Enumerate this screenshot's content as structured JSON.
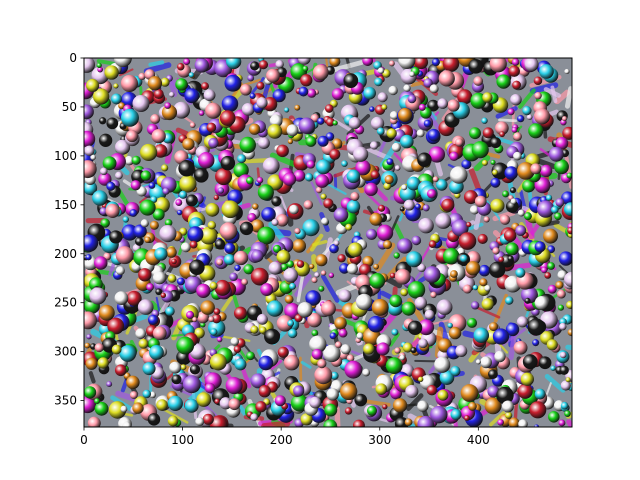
{
  "chart_data": {
    "type": "heatmap",
    "title": "",
    "xlabel": "",
    "ylabel": "",
    "xlim": [
      0,
      495
    ],
    "ylim": [
      377,
      0
    ],
    "x_ticks": [
      0,
      100,
      200,
      300,
      400
    ],
    "y_ticks": [
      0,
      50,
      100,
      150,
      200,
      250,
      300,
      350
    ],
    "x_tick_labels": [
      "0",
      "100",
      "200",
      "300",
      "400"
    ],
    "y_tick_labels": [
      "0",
      "50",
      "100",
      "150",
      "200",
      "250",
      "300",
      "350"
    ],
    "image_content": "psychedelic multicolored pattern of glossy spheres, textured scales and swirls (feature visualization)",
    "palette": [
      "#e6c8f0",
      "#2ad0e8",
      "#19d119",
      "#e01fd6",
      "#2222e6",
      "#dddd22",
      "#c81e2e",
      "#1a1a1a",
      "#f2f2f2",
      "#a05ae0",
      "#ff9aa8",
      "#e08a1e"
    ],
    "grid": false,
    "legend": "none"
  }
}
